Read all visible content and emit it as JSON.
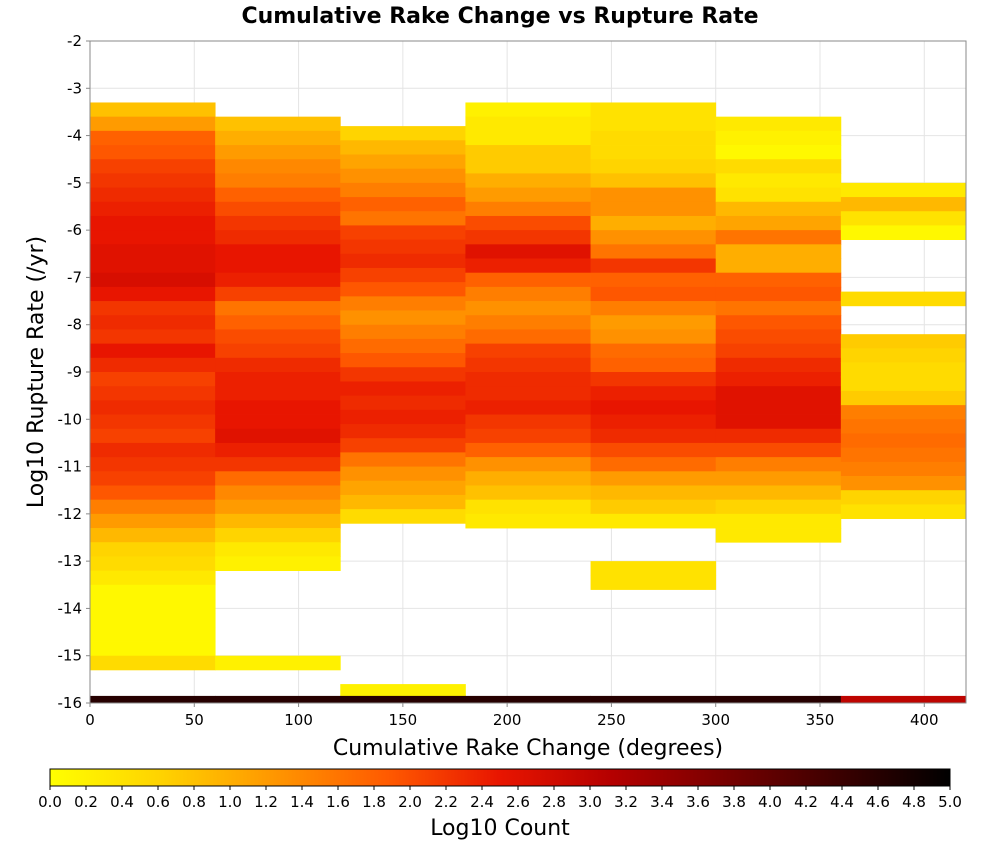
{
  "chart_data": {
    "type": "heatmap",
    "title": "Cumulative Rake Change vs Rupture Rate",
    "xlabel": "Cumulative Rake Change (degrees)",
    "ylabel": "Log10 Rupture Rate (/yr)",
    "xlim": [
      0,
      420
    ],
    "ylim": [
      -16,
      -2
    ],
    "x_ticks": [
      "0",
      "50",
      "100",
      "150",
      "200",
      "250",
      "300",
      "350",
      "400"
    ],
    "y_ticks": [
      "-2",
      "-3",
      "-4",
      "-5",
      "-6",
      "-7",
      "-8",
      "-9",
      "-10",
      "-11",
      "-12",
      "-13",
      "-14",
      "-15",
      "-16"
    ],
    "x_bin_width": 60,
    "y_bin_height": 0.3,
    "grid": true,
    "colorbar": {
      "label": "Log10 Count",
      "range": [
        0,
        5
      ],
      "ticks": [
        "0.0",
        "0.2",
        "0.4",
        "0.6",
        "0.8",
        "1.0",
        "1.2",
        "1.4",
        "1.6",
        "1.8",
        "2.0",
        "2.2",
        "2.4",
        "2.6",
        "2.8",
        "3.0",
        "3.2",
        "3.4",
        "3.6",
        "3.8",
        "4.0",
        "4.2",
        "4.4",
        "4.6",
        "4.8",
        "5.0"
      ],
      "stops": [
        "#ffff00",
        "#ffd200",
        "#ff9600",
        "#ff5a00",
        "#e81500",
        "#b40000",
        "#780000",
        "#3c0000",
        "#000000"
      ]
    },
    "columns": [
      {
        "x_start": 0,
        "segments": [
          {
            "y_top": -3.3,
            "vals": [
              0.8,
              1.2,
              1.8,
              1.9,
              2.1,
              2.2,
              2.3,
              2.4,
              2.5,
              2.5,
              2.6,
              2.6,
              2.7,
              2.5,
              2.2,
              2.3,
              2.2,
              2.5,
              2.3,
              2.1,
              2.2,
              2.3,
              2.2,
              2.1,
              2.3,
              2.2,
              2.1,
              1.9,
              1.5,
              1.2,
              0.9,
              0.6,
              0.5,
              0.3,
              0.1,
              0.1,
              0.1,
              0.1,
              0.1,
              0.5
            ]
          }
        ]
      },
      {
        "x_start": 60,
        "segments": [
          {
            "y_top": -3.6,
            "vals": [
              0.8,
              1.0,
              1.2,
              1.4,
              1.5,
              1.8,
              2.0,
              2.2,
              2.3,
              2.5,
              2.5,
              2.4,
              2.1,
              1.6,
              1.8,
              2.0,
              2.1,
              2.3,
              2.4,
              2.4,
              2.5,
              2.5,
              2.6,
              2.4,
              2.2,
              1.7,
              1.4,
              1.2,
              0.9,
              0.6,
              0.3,
              0.2
            ]
          },
          {
            "y_top": -15.0,
            "vals": [
              0.2
            ]
          }
        ]
      },
      {
        "x_start": 120,
        "segments": [
          {
            "y_top": -3.8,
            "vals": [
              0.6,
              0.9,
              1.1,
              1.3,
              1.5,
              1.8,
              1.6,
              2.1,
              2.2,
              2.3,
              2.1,
              1.9,
              1.5,
              1.3,
              1.5,
              1.7,
              1.9,
              2.2,
              2.4,
              2.3,
              2.4,
              2.3,
              2.1,
              1.6,
              1.3,
              1.1,
              0.9,
              0.5
            ]
          },
          {
            "y_top": -15.6,
            "vals": [
              0.2
            ]
          }
        ]
      },
      {
        "x_start": 180,
        "segments": [
          {
            "y_top": -3.3,
            "vals": [
              0.2,
              0.3,
              0.3,
              0.7,
              0.7,
              1.0,
              1.2,
              1.5,
              2.0,
              2.2,
              2.6,
              2.4,
              1.8,
              1.5,
              1.3,
              1.5,
              1.7,
              2.1,
              2.2,
              2.3,
              2.3,
              2.4,
              2.2,
              2.1,
              1.8,
              1.3,
              1.0,
              0.8,
              0.4,
              0.3
            ]
          }
        ]
      },
      {
        "x_start": 240,
        "segments": [
          {
            "y_top": -3.3,
            "vals": [
              0.4,
              0.4,
              0.5,
              0.5,
              0.6,
              0.8,
              1.3,
              1.3,
              1.0,
              1.3,
              1.6,
              2.2,
              1.8,
              1.9,
              1.5,
              1.2,
              1.3,
              1.7,
              1.8,
              2.2,
              2.4,
              2.5,
              2.4,
              2.3,
              2.0,
              1.7,
              1.2,
              0.9,
              0.7,
              0.3
            ]
          },
          {
            "y_top": -13.0,
            "vals": [
              0.4,
              0.4
            ]
          }
        ]
      },
      {
        "x_start": 300,
        "segments": [
          {
            "y_top": -3.6,
            "vals": [
              0.3,
              0.2,
              0.1,
              0.5,
              0.3,
              0.4,
              0.9,
              1.1,
              1.6,
              1.0,
              1.0,
              1.8,
              1.9,
              1.6,
              1.9,
              2.0,
              2.1,
              2.3,
              2.4,
              2.6,
              2.6,
              2.6,
              2.3,
              2.0,
              1.5,
              1.2,
              0.9,
              0.6,
              0.3,
              0.3
            ]
          }
        ]
      },
      {
        "x_start": 360,
        "segments": [
          {
            "y_top": -5.0,
            "vals": [
              0.3,
              0.9,
              0.4,
              0.1
            ]
          },
          {
            "y_top": -7.3,
            "vals": [
              0.5
            ]
          },
          {
            "y_top": -8.2,
            "vals": [
              0.7,
              0.6,
              0.5,
              0.5,
              0.7,
              1.5,
              1.6,
              1.7,
              1.6,
              1.5,
              1.3,
              0.6,
              0.4
            ]
          }
        ]
      }
    ],
    "bottom_row": {
      "y_top": -15.85,
      "vals": [
        4.6,
        4.6,
        4.6,
        4.6,
        4.6,
        4.6,
        3.0
      ]
    }
  }
}
